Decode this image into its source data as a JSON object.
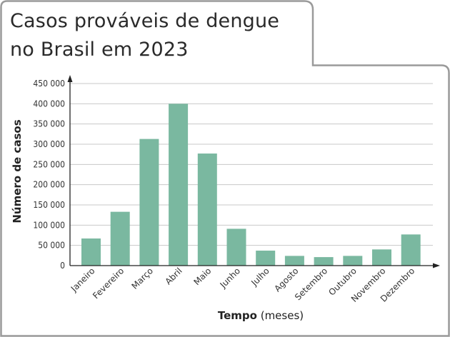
{
  "chart_data": {
    "type": "bar",
    "title_lines": [
      "Casos prováveis de dengue",
      "no Brasil em 2023"
    ],
    "ylabel": "Número de casos",
    "xlabel_bold": "Tempo",
    "xlabel_rest": " (meses)",
    "categories": [
      "Janeiro",
      "Fevereiro",
      "Março",
      "Abril",
      "Maio",
      "Junho",
      "Julho",
      "Agosto",
      "Setembro",
      "Outubro",
      "Novembro",
      "Dezembro"
    ],
    "values": [
      67000,
      133000,
      313000,
      400000,
      277000,
      91000,
      37000,
      24000,
      21000,
      24000,
      40000,
      77000
    ],
    "yticks": [
      0,
      50000,
      100000,
      150000,
      200000,
      250000,
      300000,
      350000,
      400000,
      450000
    ],
    "ytick_labels": [
      "0",
      "50 000",
      "100 000",
      "150 000",
      "200 000",
      "250 000",
      "300 000",
      "350 000",
      "400 000",
      "450 000"
    ],
    "ylim": [
      0,
      450000
    ],
    "grid": true,
    "bar_color": "#7ab8a0",
    "frame_color": "#9a9a9a"
  }
}
